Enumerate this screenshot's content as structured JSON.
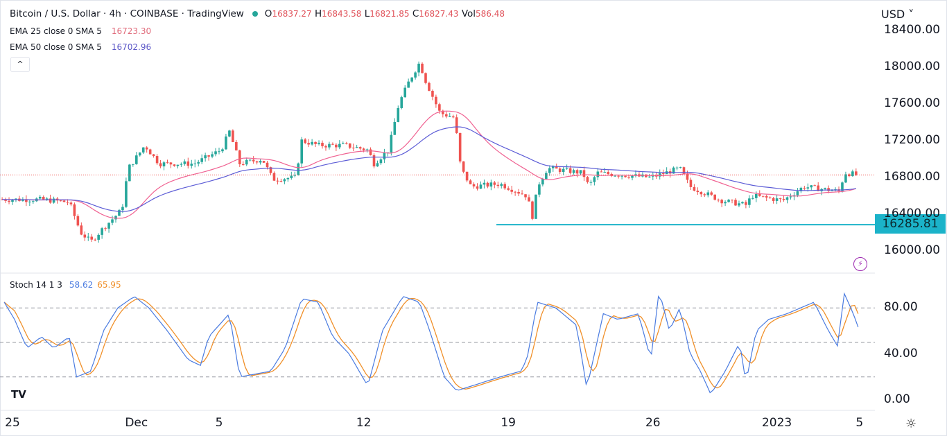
{
  "header": {
    "title": "Bitcoin / U.S. Dollar · 4h · COINBASE · TradingView",
    "o_label": "O",
    "o": "16837.27",
    "h_label": "H",
    "h": "16843.58",
    "l_label": "L",
    "l": "16821.85",
    "c_label": "C",
    "c": "16827.43",
    "vol_label": "Vol",
    "vol": "586.48",
    "ema25_label": "EMA 25 close 0 SMA 5",
    "ema25_value": "16723.30",
    "ema50_label": "EMA 50 close 0 SMA 5",
    "ema50_value": "16702.96",
    "collapse_icon": "^",
    "currency": "USD ˅"
  },
  "stoch": {
    "label": "Stoch 14 1 3",
    "k_value": "58.62",
    "d_value": "65.95"
  },
  "colors": {
    "up": "#26a69a",
    "down": "#ef5350",
    "ema25": "#f06292",
    "ema50": "#5c5cd6",
    "stoch_k": "#4a7be0",
    "stoch_d": "#f0902a",
    "support": "#1bb3c9"
  },
  "chart_data": [
    {
      "type": "candlestick",
      "title": "Bitcoin / U.S. Dollar · 4h · COINBASE",
      "xlabel": "",
      "ylabel": "USD",
      "ylim": [
        16000,
        18400
      ],
      "yticks": [
        "18400.00",
        "18000.00",
        "17600.00",
        "17200.00",
        "16800.00",
        "16400.00",
        "16000.00"
      ],
      "ytick_values": [
        18400,
        18000,
        17600,
        17200,
        16800,
        16400,
        16000
      ],
      "xticks": [
        "25",
        "Dec",
        "5",
        "12",
        "19",
        "26",
        "2023",
        "5"
      ],
      "xtick_days": [
        0,
        6,
        10,
        17,
        24,
        31,
        37,
        41
      ],
      "price_path_days": [
        -0.4,
        1.4,
        2.75,
        3.3,
        3.8,
        4.4,
        5.3,
        5.6,
        6.1,
        6.4,
        7.1,
        8.8,
        10.1,
        10.5,
        11,
        12.1,
        12.6,
        13.7,
        14,
        14.8,
        16.1,
        17.2,
        17.5,
        18.2,
        18.7,
        19.2,
        19.7,
        20,
        20.7,
        21.4,
        21.7,
        22.2,
        23.6,
        24.9,
        25.2,
        25.4,
        25.9,
        27.6,
        27.9,
        28.3,
        30.9,
        32.3,
        32.8,
        34.3,
        35.5,
        35.8,
        37.3,
        38.3,
        40,
        40.3,
        41
      ],
      "price_path_close": [
        16560,
        16560,
        16530,
        16200,
        16100,
        16250,
        16450,
        16900,
        17050,
        17150,
        16950,
        16950,
        17100,
        17300,
        16950,
        17000,
        16780,
        16800,
        17200,
        17150,
        17150,
        17100,
        16950,
        17100,
        17600,
        17850,
        18050,
        17850,
        17500,
        17450,
        16900,
        16700,
        16730,
        16600,
        16350,
        16700,
        16900,
        16850,
        16700,
        16850,
        16800,
        16900,
        16700,
        16550,
        16500,
        16600,
        16550,
        16700,
        16650,
        16850,
        16827
      ],
      "support_level": 16285.81,
      "support_label": "16285.81",
      "last_price": 16827.43
    },
    {
      "type": "line",
      "title": "Stoch 14 1 3",
      "ylim": [
        0,
        100
      ],
      "yticks": [
        "80.00",
        "40.00",
        "0.00"
      ],
      "ytick_values": [
        80,
        40,
        0
      ],
      "bands": [
        80,
        50,
        20
      ],
      "k_days": [
        -0.4,
        0.1,
        0.7,
        1.4,
        2,
        2.75,
        3.1,
        3.8,
        4.4,
        5.1,
        5.9,
        6.6,
        7.5,
        8.5,
        9.1,
        9.5,
        10.5,
        11,
        12.5,
        13.2,
        14,
        14.8,
        15.5,
        16.3,
        17.2,
        17.9,
        18.9,
        19.7,
        20.2,
        20.9,
        21.5,
        22.2,
        23.6,
        24.6,
        24.9,
        25.4,
        26.3,
        27.3,
        27.8,
        28.6,
        29.3,
        30.3,
        30.9,
        31.3,
        31.8,
        32.3,
        32.8,
        33.3,
        33.8,
        34.5,
        35.2,
        35.5,
        36,
        36.6,
        37.5,
        38.8,
        39.5,
        40,
        40.2,
        40.7,
        41
      ],
      "k_values": [
        85,
        70,
        45,
        55,
        45,
        55,
        20,
        25,
        60,
        80,
        90,
        80,
        60,
        35,
        30,
        55,
        75,
        20,
        25,
        45,
        88,
        85,
        55,
        40,
        12,
        60,
        90,
        85,
        60,
        20,
        8,
        12,
        20,
        25,
        35,
        85,
        80,
        65,
        10,
        75,
        70,
        75,
        35,
        95,
        60,
        80,
        40,
        25,
        5,
        25,
        50,
        15,
        60,
        70,
        75,
        85,
        60,
        45,
        95,
        75,
        60
      ]
    }
  ]
}
